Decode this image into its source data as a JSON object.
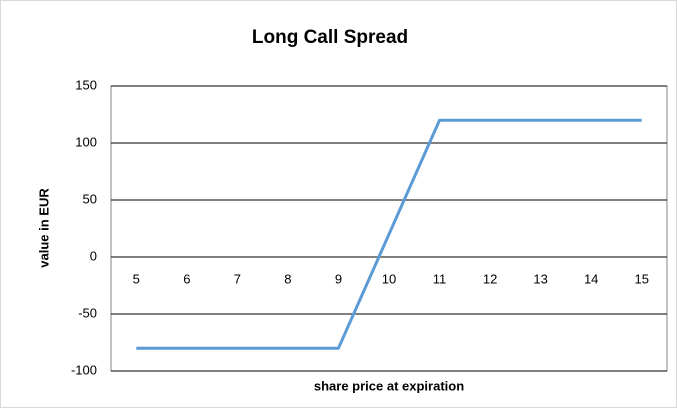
{
  "chart_data": {
    "type": "line",
    "title": "Long Call Spread",
    "x_label": "share price at expiration",
    "y_label": "value in EUR",
    "categories": [
      5,
      6,
      7,
      8,
      9,
      10,
      11,
      12,
      13,
      14,
      15
    ],
    "values": [
      -80,
      -80,
      -80,
      -80,
      -80,
      20,
      120,
      120,
      120,
      120,
      120
    ],
    "color": "#5b9bd5",
    "ylim": [
      -100,
      150
    ],
    "yticks": [
      -100,
      -50,
      0,
      50,
      100,
      150
    ],
    "grid": true
  }
}
